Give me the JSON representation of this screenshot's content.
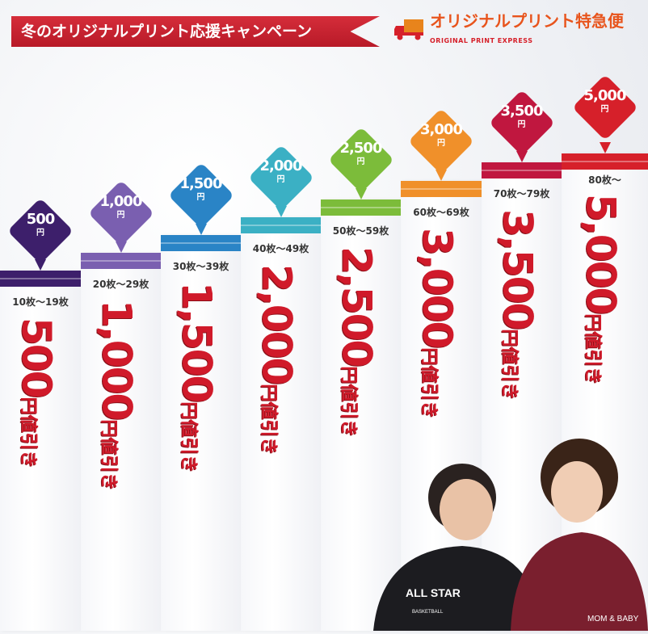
{
  "header": {
    "campaign_title": "冬のオリジナルプリント応援キャンペーン",
    "logo": {
      "main": "オリジナルプリント特急便",
      "sub": "ORIGINAL PRINT EXPRESS",
      "icon": "truck-icon"
    }
  },
  "yen": "円",
  "discount_suffix": "円値引き",
  "tiers": [
    {
      "amount": "500",
      "range": "10枚～19枚",
      "color": "#3d1f6b"
    },
    {
      "amount": "1,000",
      "range": "20枚～29枚",
      "color": "#7a5fb0"
    },
    {
      "amount": "1,500",
      "range": "30枚～39枚",
      "color": "#2a84c6"
    },
    {
      "amount": "2,000",
      "range": "40枚～49枚",
      "color": "#3bb0c4"
    },
    {
      "amount": "2,500",
      "range": "50枚～59枚",
      "color": "#7cbc3a"
    },
    {
      "amount": "3,000",
      "range": "60枚～69枚",
      "color": "#f0902a"
    },
    {
      "amount": "3,500",
      "range": "70枚～79枚",
      "color": "#c0173f"
    },
    {
      "amount": "5,000",
      "range": "80枚～",
      "color": "#d6202a"
    }
  ],
  "photo": {
    "hoodie_left": "ALL STAR",
    "hoodie_left_sub": "BASKETBALL",
    "hoodie_right": "MOM & BABY"
  }
}
